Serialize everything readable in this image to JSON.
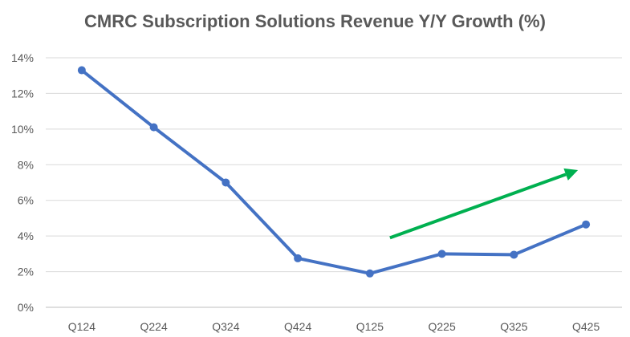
{
  "chart_data": {
    "type": "line",
    "title": "CMRC Subscription Solutions Revenue Y/Y Growth (%)",
    "categories": [
      "Q124",
      "Q224",
      "Q324",
      "Q424",
      "Q125",
      "Q225",
      "Q325",
      "Q425"
    ],
    "series": [
      {
        "values": [
          13.3,
          10.1,
          7.0,
          2.75,
          1.9,
          3.0,
          2.95,
          4.65
        ],
        "color": "#4472C4"
      }
    ],
    "ylim": [
      0,
      14
    ],
    "yticks": [
      0,
      2,
      4,
      6,
      8,
      10,
      12,
      14
    ],
    "ytick_labels": [
      "0%",
      "2%",
      "4%",
      "6%",
      "8%",
      "10%",
      "12%",
      "14%"
    ],
    "grid": true,
    "legend": "none",
    "annotations": [
      {
        "type": "arrow",
        "color": "#00B050",
        "from": {
          "x": "Q125",
          "y": 3.9
        },
        "to": {
          "x": "Q425",
          "y": 7.7
        }
      }
    ]
  }
}
